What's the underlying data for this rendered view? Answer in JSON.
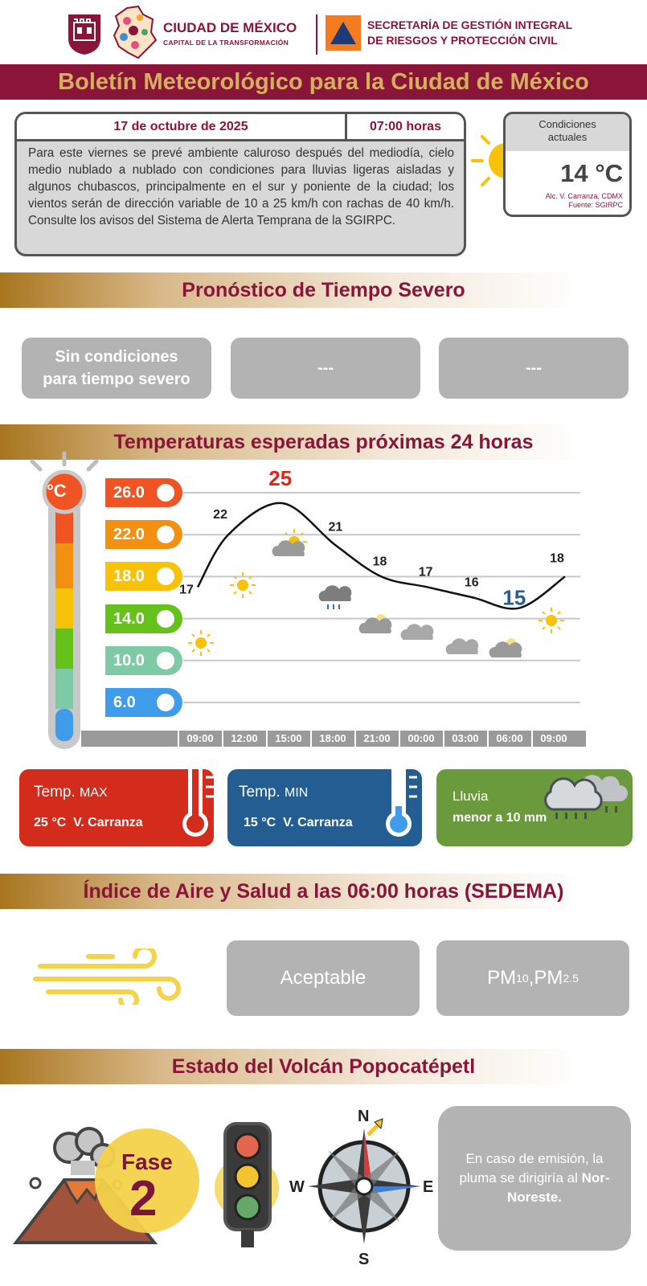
{
  "header": {
    "city_name": "CIUDAD DE MÉXICO",
    "city_slogan": "CAPITAL DE LA TRANSFORMACIÓN",
    "secretaria_line1": "SECRETARÍA DE GESTIÓN INTEGRAL",
    "secretaria_line2": "DE RIESGOS Y PROTECCIÓN CIVIL"
  },
  "bulletin": {
    "title": "Boletín Meteorológico para la Ciudad de México",
    "date": "17 de octubre de 2025",
    "time": "07:00 horas",
    "description": "Para este viernes se prevé ambiente caluroso después del mediodía, cielo medio nublado a nublado con condiciones para lluvias ligeras aisladas y algunos chubascos, principalmente en el sur y poniente de la ciudad; los vientos serán de dirección variable de 10 a 25 km/h con rachas de 40 km/h. Consulte los avisos del Sistema de Alerta Temprana de la SGIRPC."
  },
  "current": {
    "label_line1": "Condiciones",
    "label_line2": "actuales",
    "temp": "14 °C",
    "location": "Alc. V. Carranza, CDMX",
    "source": "Fuente: SGIRPC"
  },
  "severe": {
    "title": "Pronóstico de Tiempo Severo",
    "box1_line1": "Sin condiciones",
    "box1_line2": "para tiempo severo",
    "box2": "---",
    "box3": "---"
  },
  "temperatures": {
    "title": "Temperaturas esperadas próximas 24 horas",
    "thermometer_unit": "°C"
  },
  "chart_data": {
    "type": "line",
    "x": [
      "09:00",
      "12:00",
      "15:00",
      "18:00",
      "21:00",
      "00:00",
      "03:00",
      "06:00",
      "09:00"
    ],
    "y_ticks": [
      "26.0",
      "22.0",
      "18.0",
      "14.0",
      "10.0",
      "6.0"
    ],
    "y_tick_colors": [
      "#f05423",
      "#f29111",
      "#f9c20a",
      "#66c21a",
      "#7fcaa6",
      "#3f9ce8"
    ],
    "points": [
      {
        "label": "17",
        "value": 17,
        "hour": 0
      },
      {
        "label": "22",
        "value": 22,
        "hour": 2
      },
      {
        "label": "25",
        "value": 25,
        "hour": 5.5
      },
      {
        "label": "21",
        "value": 21,
        "hour": 9
      },
      {
        "label": "18",
        "value": 18,
        "hour": 12
      },
      {
        "label": "17",
        "value": 17,
        "hour": 15
      },
      {
        "label": "16",
        "value": 16,
        "hour": 18
      },
      {
        "label": "15",
        "value": 15,
        "hour": 21
      },
      {
        "label": "18",
        "value": 18,
        "hour": 24
      }
    ],
    "max_label": "25",
    "min_label": "15",
    "max_color": "#e3241b",
    "min_color": "#2b5c8f",
    "weather_icons": [
      "sun-icon",
      "sun-icon",
      "partly-cloudy-icon",
      "rain-cloud-icon",
      "night-cloudy-icon",
      "cloud-icon",
      "cloud-icon",
      "night-cloudy-icon",
      "sun-icon"
    ]
  },
  "cards": {
    "max_title": "Temp.",
    "max_suffix": "MAX",
    "max_value": "25 °C  V. Carranza",
    "max_color": "#d32b1c",
    "min_title": "Temp.",
    "min_suffix": "MIN",
    "min_value": "15 °C  V. Carranza",
    "min_color": "#235d92",
    "rain_title": "Lluvia",
    "rain_value": "menor a 10 mm",
    "rain_color": "#6b9a3d"
  },
  "air": {
    "title": "Índice de Aire y Salud a las 06:00 horas (SEDEMA)",
    "quality": "Aceptable",
    "pollutant_a": "PM",
    "pollutant_a_sub": "10",
    "separator": ",",
    "pollutant_b": "PM",
    "pollutant_b_sub": "2.5"
  },
  "volcano": {
    "title": "Estado del Volcán Popocatépetl",
    "fase_label": "Fase",
    "fase_number": "2",
    "compass_n": "N",
    "compass_s": "S",
    "compass_e": "E",
    "compass_w": "W",
    "plume_text": "En caso de emisión, la pluma se dirigiría al",
    "plume_direction": "Nor-Noreste."
  }
}
